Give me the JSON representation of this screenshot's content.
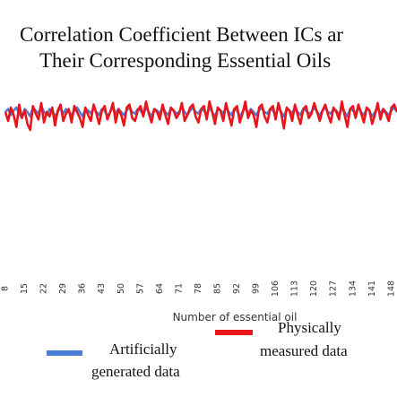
{
  "chart_data": {
    "type": "line",
    "title_line1": "Correlation Coefficient Between ICs ar",
    "title_line2": "Their Corresponding Essential Oils",
    "xlabel": "Number of essential oil",
    "x_ticks": [
      "8",
      "15",
      "22",
      "29",
      "36",
      "43",
      "50",
      "57",
      "64",
      "71",
      "78",
      "85",
      "92",
      "99",
      "106",
      "113",
      "120",
      "127",
      "134",
      "141",
      "148"
    ],
    "x_range": [
      8,
      150
    ],
    "y_range": [
      -0.15,
      1.05
    ],
    "grid": false,
    "legend_position": "bottom",
    "series": [
      {
        "name_line1": "Artificially",
        "name_line2": "generated data",
        "color": "#4a7fd9",
        "values": [
          0.9,
          0.92,
          0.88,
          0.91,
          0.93,
          0.89,
          0.86,
          0.92,
          0.9,
          0.87,
          0.93,
          0.91,
          0.89,
          0.94,
          0.9,
          0.88,
          0.92,
          0.91,
          0.87,
          0.9,
          0.93,
          0.89,
          0.92,
          0.9,
          0.88,
          0.91,
          0.93,
          0.9,
          0.87,
          0.92,
          0.91,
          0.89,
          0.93,
          0.9,
          0.88,
          0.92,
          0.91,
          0.87,
          0.9,
          0.93,
          0.89,
          0.92,
          0.9,
          0.88,
          0.91,
          0.93,
          0.9,
          0.89,
          0.92,
          0.91,
          0.88,
          0.93,
          0.9,
          0.87,
          0.92,
          0.91,
          0.89,
          0.93,
          0.9,
          0.88,
          0.92,
          0.91,
          0.89,
          0.9,
          0.93,
          0.9,
          0.88,
          0.91,
          0.93,
          0.9,
          0.89,
          0.92,
          0.91,
          0.88,
          0.93,
          0.9,
          0.87,
          0.92,
          0.91,
          0.89,
          0.93,
          0.9,
          0.88,
          0.92,
          0.91,
          0.87,
          0.9,
          0.93,
          0.89,
          0.92,
          0.9,
          0.88,
          0.91,
          0.93,
          0.9,
          0.89,
          0.92,
          0.91,
          0.88,
          0.93,
          0.9,
          0.87,
          0.92,
          0.91,
          0.89,
          0.93,
          0.9,
          0.88,
          0.92,
          0.91,
          0.89,
          0.9,
          0.93,
          0.9,
          0.88,
          0.91,
          0.93,
          0.9,
          0.89,
          0.92,
          0.91,
          0.88,
          0.93,
          0.9,
          0.87,
          0.92,
          0.91,
          0.89,
          0.93,
          0.9,
          0.88,
          0.92,
          0.91,
          0.87,
          0.9,
          0.93,
          0.89,
          0.92,
          0.9,
          0.88,
          0.91,
          0.93,
          0.9
        ]
      },
      {
        "name_line1": "Physically",
        "name_line2": "measured data",
        "color": "#e8161b",
        "values": [
          0.9,
          0.84,
          0.93,
          0.88,
          0.8,
          0.95,
          0.86,
          0.91,
          0.82,
          0.78,
          0.94,
          0.89,
          0.85,
          0.96,
          0.83,
          0.9,
          0.87,
          0.93,
          0.81,
          0.91,
          0.95,
          0.84,
          0.89,
          0.92,
          0.83,
          0.94,
          0.9,
          0.86,
          0.8,
          0.93,
          0.88,
          0.84,
          0.95,
          0.89,
          0.82,
          0.91,
          0.94,
          0.85,
          0.9,
          0.96,
          0.83,
          0.92,
          0.88,
          0.81,
          0.93,
          0.95,
          0.86,
          0.84,
          0.91,
          0.94,
          0.87,
          0.97,
          0.89,
          0.83,
          0.92,
          0.9,
          0.85,
          0.95,
          0.88,
          0.82,
          0.93,
          0.91,
          0.86,
          0.89,
          0.96,
          0.84,
          0.88,
          0.93,
          0.95,
          0.87,
          0.83,
          0.92,
          0.94,
          0.85,
          0.97,
          0.9,
          0.82,
          0.93,
          0.91,
          0.84,
          0.96,
          0.88,
          0.81,
          0.92,
          0.94,
          0.83,
          0.89,
          0.97,
          0.86,
          0.91,
          0.88,
          0.8,
          0.93,
          0.95,
          0.87,
          0.83,
          0.92,
          0.94,
          0.85,
          0.96,
          0.89,
          0.79,
          0.93,
          0.91,
          0.84,
          0.95,
          0.88,
          0.82,
          0.92,
          0.94,
          0.86,
          0.89,
          0.96,
          0.9,
          0.84,
          0.91,
          0.95,
          0.88,
          0.83,
          0.93,
          0.9,
          0.85,
          0.97,
          0.88,
          0.8,
          0.92,
          0.94,
          0.86,
          0.95,
          0.89,
          0.83,
          0.93,
          0.91,
          0.82,
          0.88,
          0.96,
          0.85,
          0.92,
          0.89,
          0.84,
          0.93,
          0.95,
          0.9
        ]
      }
    ]
  }
}
